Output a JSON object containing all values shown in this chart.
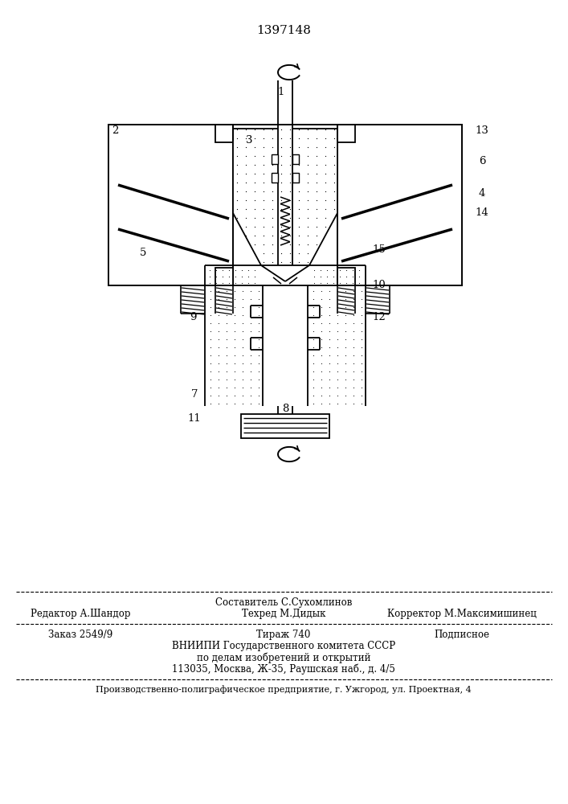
{
  "patent_number": "1397148",
  "bg_color": "#ffffff",
  "figsize": [
    7.07,
    10.0
  ],
  "dpi": 100,
  "footer": {
    "row0_center": "Составитель С.Сухомлинов",
    "row1_left": "Редактор А.Шандор",
    "row1_center": "Техред М.Дидык",
    "row1_right": "Корректор М.Максимишинец",
    "row2_left": "Заказ 2549/9",
    "row2_center": "Тираж 740",
    "row2_right": "Подписное",
    "row3": "ВНИИПИ Государственного комитета СССР",
    "row4": "по делам изобретений и открытий",
    "row5": "113035, Москва, Ж-35, Раушская наб., д. 4/5",
    "row6": "Производственно-полиграфическое предприятие, г. Ужгород, ул. Проектная, 4"
  }
}
